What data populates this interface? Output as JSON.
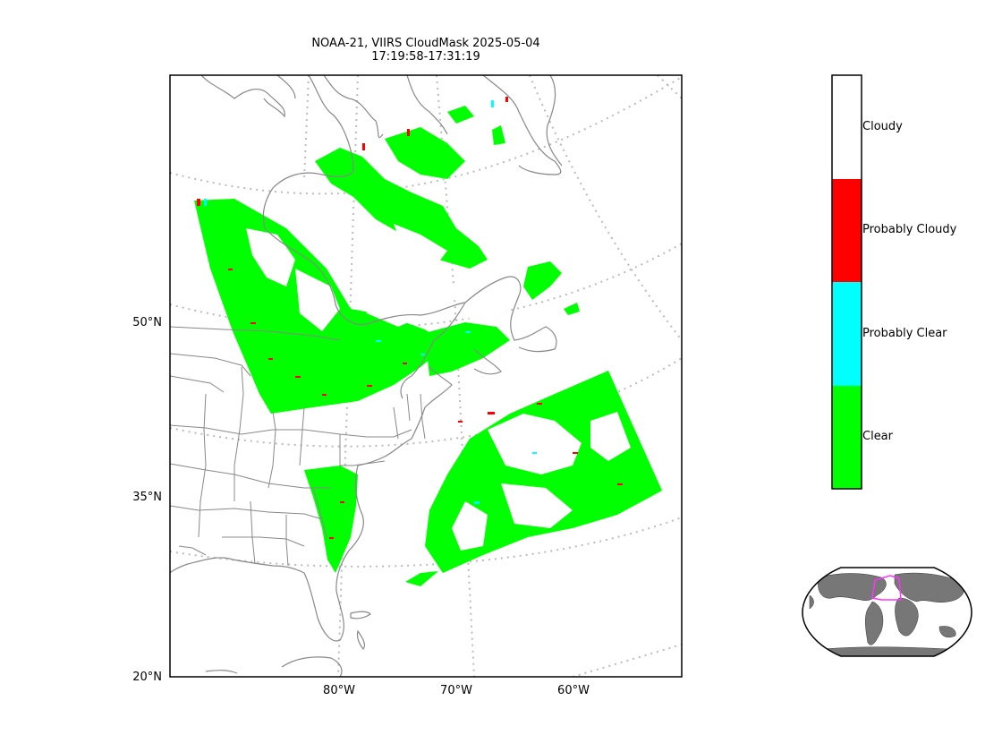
{
  "title": {
    "line1": "NOAA-21, VIIRS CloudMask 2025-05-04",
    "line2": "17:19:58-17:31:19"
  },
  "axes": {
    "lat_labels": [
      "50°N",
      "35°N",
      "20°N"
    ],
    "lon_labels": [
      "80°W",
      "70°W",
      "60°W"
    ]
  },
  "legend": {
    "categories": [
      {
        "label": "Cloudy",
        "color": "#ffffff"
      },
      {
        "label": "Probably Cloudy",
        "color": "#ff0000"
      },
      {
        "label": "Probably Clear",
        "color": "#00ffff"
      },
      {
        "label": "Clear",
        "color": "#00ff00"
      }
    ]
  },
  "inset": {
    "highlight_color": "#ff33ff",
    "land_color": "#777777"
  },
  "colors": {
    "coastline": "#888888",
    "graticule": "#bbbbbb",
    "clear": "#00ff00",
    "probably_cloudy": "#ff0000",
    "probably_clear": "#00ffff"
  }
}
